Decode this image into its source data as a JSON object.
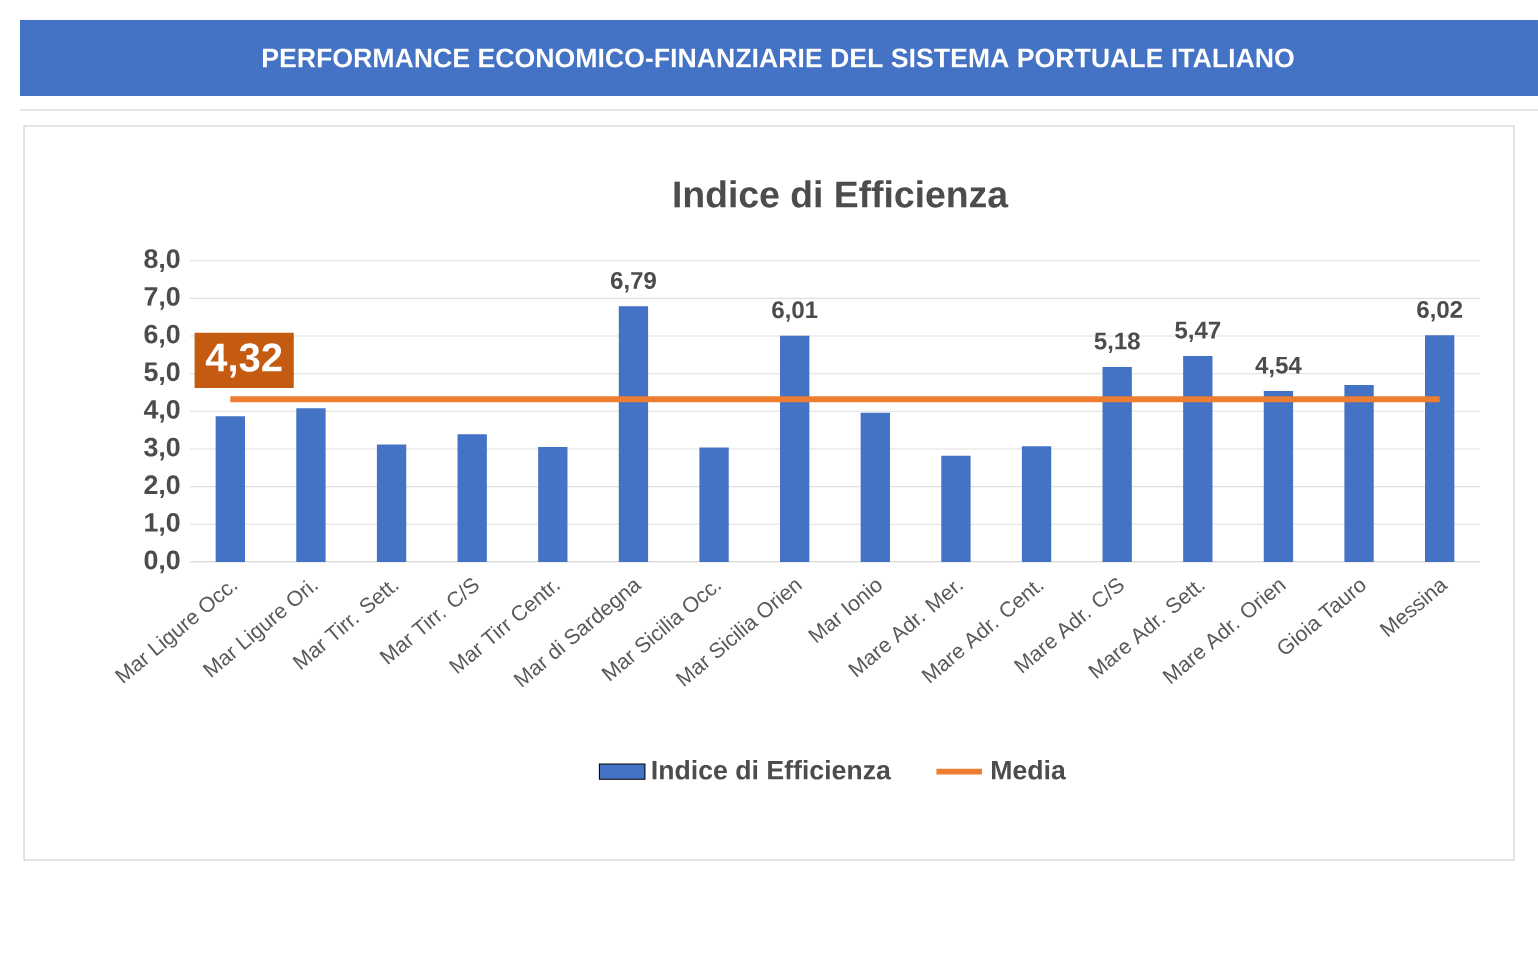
{
  "chart_data": {
    "type": "bar",
    "title": "PERFORMANCE ECONOMICO-FINANZIARIE DEL SISTEMA PORTUALE ITALIANO",
    "subtitle": "Indice di Efficienza",
    "categories": [
      "Mar Ligure Occ.",
      "Mar Ligure Ori.",
      "Mar Tirr. Sett.",
      "Mar Tirr. C/S",
      "Mar Tirr Centr.",
      "Mar di Sardegna",
      "Mar Sicilia Occ.",
      "Mar Sicilia Orien",
      "Mar Ionio",
      "Mare Adr. Mer.",
      "Mare Adr. Cent.",
      "Mare Adr. C/S",
      "Mare Adr. Sett.",
      "Mare Adr. Orien",
      "Gioia Tauro",
      "Messina"
    ],
    "series": [
      {
        "name": "Indice di Efficienza",
        "color": "#4472c4",
        "values": [
          3.87,
          4.08,
          3.12,
          3.39,
          3.05,
          6.79,
          3.04,
          6.01,
          3.96,
          2.82,
          3.07,
          5.18,
          5.47,
          4.54,
          4.7,
          6.02
        ],
        "value_labels": [
          null,
          null,
          null,
          null,
          null,
          "6,79",
          null,
          "6,01",
          null,
          null,
          null,
          "5,18",
          "5,47",
          "4,54",
          null,
          "6,02"
        ]
      },
      {
        "name": "Media",
        "type": "line",
        "color": "#ed7d31",
        "values": [
          4.32,
          4.32,
          4.32,
          4.32,
          4.32,
          4.32,
          4.32,
          4.32,
          4.32,
          4.32,
          4.32,
          4.32,
          4.32,
          4.32,
          4.32,
          4.32
        ]
      }
    ],
    "annotations": [
      "4,32"
    ],
    "ylim": [
      0,
      8
    ],
    "yticks": [
      {
        "value": 0,
        "label": "0,0"
      },
      {
        "value": 1,
        "label": "1,0"
      },
      {
        "value": 2,
        "label": "2,0"
      },
      {
        "value": 3,
        "label": "3,0"
      },
      {
        "value": 4,
        "label": "4,0"
      },
      {
        "value": 5,
        "label": "5,0"
      },
      {
        "value": 6,
        "label": "6,0"
      },
      {
        "value": 7,
        "label": "7,0"
      },
      {
        "value": 8,
        "label": "8,0"
      }
    ],
    "grid": "y",
    "legend": "bottom"
  }
}
